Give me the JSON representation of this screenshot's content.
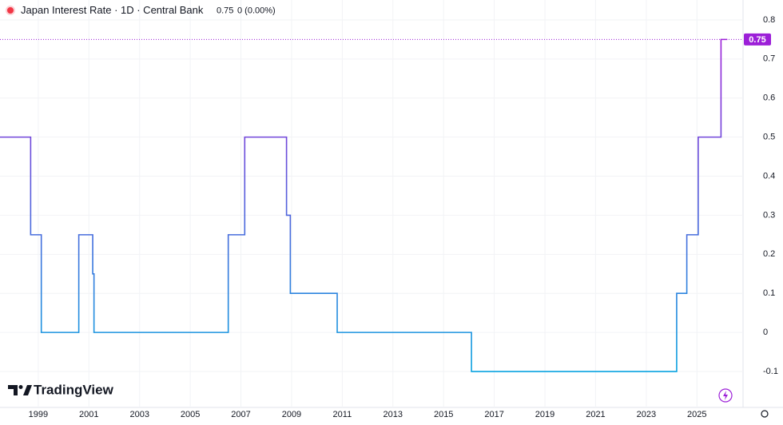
{
  "chart_data": {
    "type": "step-line",
    "title": "Japan Interest Rate · 1D · Central Bank",
    "header_value": 0.75,
    "header_change": "0 (0.00%)",
    "brand": "TradingView",
    "x": [
      1997.49,
      1998.7,
      1999.12,
      2000.6,
      2001.15,
      2001.2,
      2006.5,
      2007.15,
      2008.8,
      2008.95,
      2010.8,
      2016.1,
      2024.2,
      2024.6,
      2025.05,
      2025.95,
      2026.2
    ],
    "series": [
      {
        "name": "Japan Interest Rate",
        "gradient": [
          "#9c1fd8",
          "#0aa3e0"
        ],
        "values": [
          0.5,
          0.25,
          0,
          0.25,
          0.15,
          0,
          0.25,
          0.5,
          0.3,
          0.1,
          0,
          -0.1,
          0.1,
          0.25,
          0.5,
          0.75,
          0.75
        ]
      }
    ],
    "xlim": [
      1997.49,
      2026.82
    ],
    "xticks": [
      1999,
      2001,
      2003,
      2005,
      2007,
      2009,
      2011,
      2013,
      2015,
      2017,
      2019,
      2021,
      2023,
      2025
    ],
    "ylim": [
      -0.192,
      0.851
    ],
    "yticks": [
      -0.1,
      0,
      0.1,
      0.2,
      0.3,
      0.4,
      0.5,
      0.6,
      0.7,
      0.8
    ],
    "grid": true,
    "last_value_color": "#9c1fd8"
  }
}
